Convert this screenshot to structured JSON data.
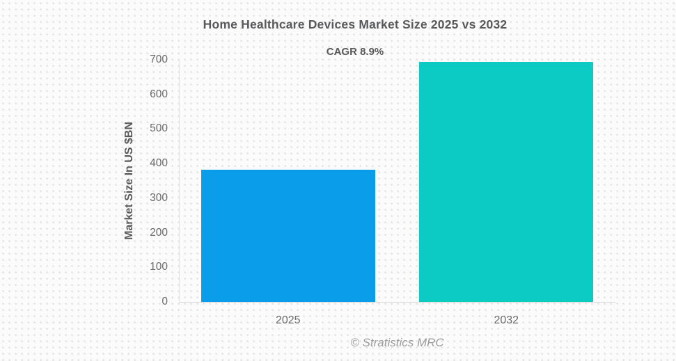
{
  "chart_data": {
    "type": "bar",
    "title": "Home Healthcare Devices Market Size 2025 vs 2032",
    "subtitle": "CAGR 8.9%",
    "categories": [
      "2025",
      "2032"
    ],
    "values": [
      383,
      695
    ],
    "bar_colors": [
      "#0a9de9",
      "#0ccac4"
    ],
    "xlabel": "",
    "ylabel": "Market Size In US $BN",
    "ylim": [
      0,
      700
    ],
    "yticks": [
      0,
      100,
      200,
      300,
      400,
      500,
      600,
      700
    ],
    "grid": false,
    "legend": false,
    "source_note": "© Stratistics MRC"
  }
}
